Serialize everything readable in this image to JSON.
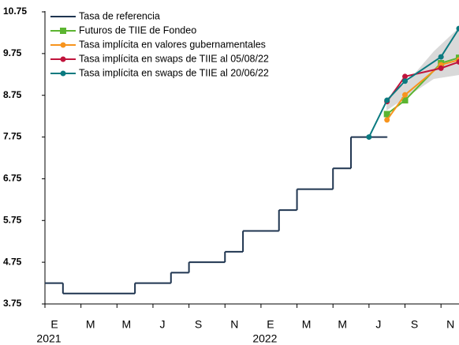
{
  "chart_data": {
    "type": "line",
    "xlim": [
      "2021-01",
      "2022-12"
    ],
    "xticks": [
      {
        "value": "2021-01",
        "label": "E"
      },
      {
        "value": "2021-03",
        "label": "M"
      },
      {
        "value": "2021-05",
        "label": "M"
      },
      {
        "value": "2021-07",
        "label": "J"
      },
      {
        "value": "2021-09",
        "label": "S"
      },
      {
        "value": "2021-11",
        "label": "N"
      },
      {
        "value": "2022-01",
        "label": "E"
      },
      {
        "value": "2022-03",
        "label": "M"
      },
      {
        "value": "2022-05",
        "label": "M"
      },
      {
        "value": "2022-07",
        "label": "J"
      },
      {
        "value": "2022-09",
        "label": "S"
      },
      {
        "value": "2022-11",
        "label": "N"
      }
    ],
    "x_year_labels": [
      {
        "value": "2021-01",
        "label": "2021"
      },
      {
        "value": "2022-01",
        "label": "2022"
      }
    ],
    "ylim": [
      3.75,
      10.75
    ],
    "yticks": [
      3.75,
      4.75,
      5.75,
      6.75,
      7.75,
      8.75,
      9.75,
      10.75
    ],
    "legend": "upper-left",
    "series": [
      {
        "name": "Tasa de referencia",
        "color": "#1f3550",
        "step": "after",
        "x": [
          "2021-01",
          "2021-02",
          "2021-06",
          "2021-08",
          "2021-09",
          "2021-11",
          "2021-12",
          "2022-02",
          "2022-03",
          "2022-05",
          "2022-06",
          "2022-08"
        ],
        "values": [
          4.25,
          4.0,
          4.25,
          4.5,
          4.75,
          5.0,
          5.5,
          6.0,
          6.5,
          7.0,
          7.75,
          7.75
        ]
      },
      {
        "name": "Futuros de TIIE de Fondeo",
        "color": "#5cb531",
        "marker": "square",
        "x": [
          "2022-08",
          "2022-09",
          "2022-11",
          "2022-12"
        ],
        "values": [
          8.3,
          8.63,
          9.52,
          9.65
        ]
      },
      {
        "name": "Tasa implícita en valores gubernamentales",
        "color": "#f7941d",
        "marker": "circle",
        "x": [
          "2022-08",
          "2022-09",
          "2022-11",
          "2022-12"
        ],
        "values": [
          8.16,
          8.76,
          9.48,
          9.6
        ]
      },
      {
        "name": "Tasa implícita en swaps de TIIE al 05/08/22",
        "color": "#c0143c",
        "marker": "circle",
        "x": [
          "2022-08",
          "2022-09",
          "2022-11",
          "2022-12"
        ],
        "values": [
          8.6,
          9.2,
          9.4,
          9.55
        ]
      },
      {
        "name": "Tasa implícita en swaps de TIIE al 20/06/22",
        "color": "#0a7a80",
        "marker": "circle",
        "x": [
          "2022-07",
          "2022-08",
          "2022-09",
          "2022-11",
          "2022-12"
        ],
        "values": [
          7.75,
          8.63,
          9.09,
          9.67,
          10.35
        ]
      }
    ]
  }
}
